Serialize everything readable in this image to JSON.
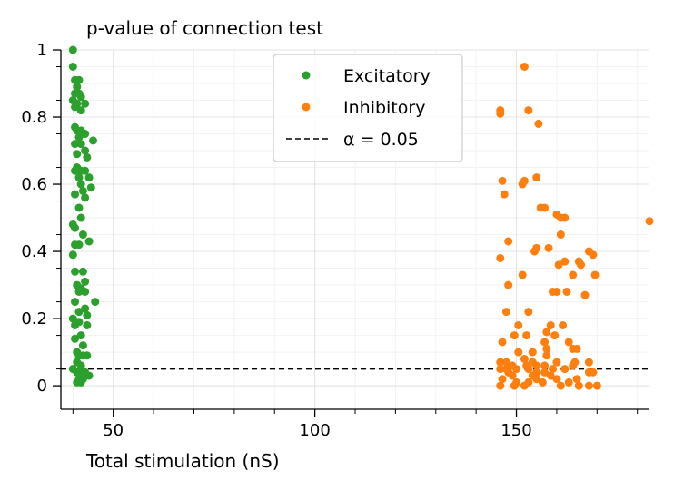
{
  "chart_data": {
    "type": "scatter",
    "title": "p-value of connection test",
    "xlabel": "Total stimulation (nS)",
    "ylabel": "",
    "xlim": [
      37,
      183
    ],
    "ylim": [
      -0.07,
      1.0
    ],
    "xticks": [
      50,
      100,
      150
    ],
    "yticks": [
      0,
      0.2,
      0.4,
      0.6,
      0.8,
      1
    ],
    "ytick_labels": [
      "0",
      "0.2",
      "0.4",
      "0.6",
      "0.8",
      "1"
    ],
    "grid": true,
    "legend_position": "top-center",
    "series": [
      {
        "name": "Excitatory",
        "color": "#2ca02c",
        "points": [
          [
            40,
            1.0
          ],
          [
            40,
            0.95
          ],
          [
            40.5,
            0.91
          ],
          [
            41.5,
            0.91
          ],
          [
            41,
            0.89
          ],
          [
            40.5,
            0.87
          ],
          [
            41.5,
            0.87
          ],
          [
            42,
            0.86
          ],
          [
            40,
            0.85
          ],
          [
            41,
            0.84
          ],
          [
            43,
            0.84
          ],
          [
            40.5,
            0.83
          ],
          [
            42,
            0.82
          ],
          [
            40.5,
            0.77
          ],
          [
            41,
            0.76
          ],
          [
            42,
            0.76
          ],
          [
            43,
            0.75
          ],
          [
            41.5,
            0.74
          ],
          [
            45,
            0.73
          ],
          [
            40.5,
            0.72
          ],
          [
            42,
            0.72
          ],
          [
            43,
            0.7
          ],
          [
            41,
            0.69
          ],
          [
            43.5,
            0.68
          ],
          [
            41,
            0.65
          ],
          [
            40.5,
            0.64
          ],
          [
            42,
            0.64
          ],
          [
            43,
            0.64
          ],
          [
            41.5,
            0.62
          ],
          [
            44,
            0.62
          ],
          [
            42,
            0.6
          ],
          [
            44.5,
            0.59
          ],
          [
            42.5,
            0.58
          ],
          [
            40.5,
            0.57
          ],
          [
            43,
            0.56
          ],
          [
            41.5,
            0.53
          ],
          [
            42,
            0.5
          ],
          [
            40,
            0.48
          ],
          [
            40.5,
            0.47
          ],
          [
            42.5,
            0.45
          ],
          [
            44,
            0.43
          ],
          [
            40.5,
            0.42
          ],
          [
            41.5,
            0.42
          ],
          [
            40,
            0.39
          ],
          [
            40.5,
            0.34
          ],
          [
            42.5,
            0.34
          ],
          [
            43,
            0.31
          ],
          [
            41,
            0.3
          ],
          [
            42,
            0.29
          ],
          [
            41.5,
            0.28
          ],
          [
            43,
            0.28
          ],
          [
            45.5,
            0.25
          ],
          [
            40.5,
            0.25
          ],
          [
            43,
            0.23
          ],
          [
            41.5,
            0.22
          ],
          [
            43.5,
            0.21
          ],
          [
            40,
            0.2
          ],
          [
            41.5,
            0.19
          ],
          [
            40.5,
            0.18
          ],
          [
            43.5,
            0.18
          ],
          [
            42,
            0.15
          ],
          [
            40.5,
            0.14
          ],
          [
            42.5,
            0.12
          ],
          [
            41,
            0.1
          ],
          [
            41.5,
            0.09
          ],
          [
            42.5,
            0.09
          ],
          [
            43.5,
            0.09
          ],
          [
            41,
            0.07
          ],
          [
            42,
            0.06
          ],
          [
            40,
            0.05
          ],
          [
            41,
            0.04
          ],
          [
            42,
            0.04
          ],
          [
            43,
            0.04
          ],
          [
            44,
            0.03
          ],
          [
            41.5,
            0.02
          ],
          [
            42.5,
            0.02
          ],
          [
            41,
            0.01
          ],
          [
            42,
            0.01
          ]
        ]
      },
      {
        "name": "Inhibitory",
        "color": "#ff7f0e",
        "points": [
          [
            152,
            0.95
          ],
          [
            146,
            0.82
          ],
          [
            153,
            0.82
          ],
          [
            146,
            0.81
          ],
          [
            155.5,
            0.78
          ],
          [
            155,
            0.62
          ],
          [
            146.5,
            0.61
          ],
          [
            152,
            0.61
          ],
          [
            151.5,
            0.6
          ],
          [
            147,
            0.57
          ],
          [
            156,
            0.53
          ],
          [
            157,
            0.53
          ],
          [
            160,
            0.51
          ],
          [
            161,
            0.5
          ],
          [
            162,
            0.5
          ],
          [
            183,
            0.49
          ],
          [
            161,
            0.45
          ],
          [
            148,
            0.43
          ],
          [
            158,
            0.41
          ],
          [
            155,
            0.41
          ],
          [
            154.5,
            0.4
          ],
          [
            168,
            0.4
          ],
          [
            169,
            0.39
          ],
          [
            146,
            0.38
          ],
          [
            162,
            0.37
          ],
          [
            165.5,
            0.37
          ],
          [
            160.5,
            0.36
          ],
          [
            166,
            0.36
          ],
          [
            151.5,
            0.33
          ],
          [
            169.5,
            0.33
          ],
          [
            164,
            0.33
          ],
          [
            148,
            0.3
          ],
          [
            159,
            0.28
          ],
          [
            160,
            0.28
          ],
          [
            162.5,
            0.28
          ],
          [
            167,
            0.27
          ],
          [
            147.5,
            0.22
          ],
          [
            153,
            0.22
          ],
          [
            150.5,
            0.18
          ],
          [
            158.5,
            0.18
          ],
          [
            161.5,
            0.18
          ],
          [
            157.5,
            0.16
          ],
          [
            149.5,
            0.15
          ],
          [
            152.5,
            0.15
          ],
          [
            159.5,
            0.15
          ],
          [
            146.5,
            0.13
          ],
          [
            157,
            0.13
          ],
          [
            163,
            0.13
          ],
          [
            157.5,
            0.11
          ],
          [
            164,
            0.11
          ],
          [
            165,
            0.11
          ],
          [
            150.5,
            0.1
          ],
          [
            154,
            0.1
          ],
          [
            157.5,
            0.09
          ],
          [
            152,
            0.08
          ],
          [
            146,
            0.07
          ],
          [
            147.5,
            0.07
          ],
          [
            154,
            0.07
          ],
          [
            160,
            0.07
          ],
          [
            164.5,
            0.07
          ],
          [
            168,
            0.07
          ],
          [
            149,
            0.06
          ],
          [
            152.5,
            0.06
          ],
          [
            155,
            0.06
          ],
          [
            157,
            0.06
          ],
          [
            164,
            0.06
          ],
          [
            146,
            0.05
          ],
          [
            147.5,
            0.05
          ],
          [
            150,
            0.05
          ],
          [
            153,
            0.05
          ],
          [
            159,
            0.05
          ],
          [
            162,
            0.05
          ],
          [
            148,
            0.04
          ],
          [
            155,
            0.04
          ],
          [
            157,
            0.04
          ],
          [
            168,
            0.04
          ],
          [
            169,
            0.04
          ],
          [
            149,
            0.03
          ],
          [
            154,
            0.03
          ],
          [
            158.5,
            0.03
          ],
          [
            146.5,
            0.02
          ],
          [
            155,
            0.02
          ],
          [
            160,
            0.02
          ],
          [
            165,
            0.02
          ],
          [
            150,
            0.01
          ],
          [
            153,
            0.01
          ],
          [
            156.5,
            0.01
          ],
          [
            163,
            0.01
          ],
          [
            146,
            0.0
          ],
          [
            149.5,
            0.0
          ],
          [
            152,
            0.0
          ],
          [
            161,
            0.0
          ],
          [
            165.5,
            0.0
          ],
          [
            168,
            0.0
          ],
          [
            170,
            0.0
          ]
        ]
      },
      {
        "name": "α = 0.05",
        "type": "line",
        "style": "dashed",
        "color": "#000000",
        "y": 0.05
      }
    ]
  }
}
